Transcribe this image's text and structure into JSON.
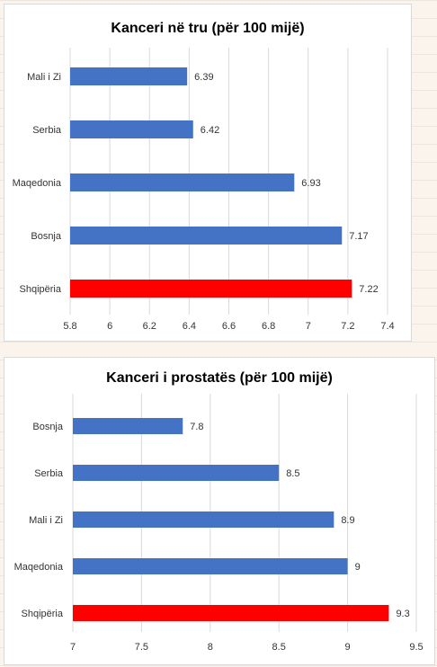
{
  "chart_data": [
    {
      "type": "bar",
      "orientation": "horizontal",
      "title": "Kanceri në tru (për 100 mijë)",
      "categories": [
        "Mali i Zi",
        "Serbia",
        "Maqedonia",
        "Bosnja",
        "Shqipëria"
      ],
      "values": [
        6.39,
        6.42,
        6.93,
        7.17,
        7.22
      ],
      "data_labels": [
        "6.39",
        "6.42",
        "6.93",
        "7.17",
        "7.22"
      ],
      "xlim": [
        5.8,
        7.4
      ],
      "xticks": [
        "5.8",
        "6",
        "6.2",
        "6.4",
        "6.6",
        "6.8",
        "7",
        "7.2",
        "7.4"
      ],
      "xtick_values": [
        5.8,
        6.0,
        6.2,
        6.4,
        6.6,
        6.8,
        7.0,
        7.2,
        7.4
      ],
      "grid": true,
      "colors": [
        "#4472c4",
        "#4472c4",
        "#4472c4",
        "#4472c4",
        "#ff0000"
      ]
    },
    {
      "type": "bar",
      "orientation": "horizontal",
      "title": "Kanceri i prostatës (për 100 mijë)",
      "categories": [
        "Bosnja",
        "Serbia",
        "Mali i Zi",
        "Maqedonia",
        "Shqipëria"
      ],
      "values": [
        7.8,
        8.5,
        8.9,
        9.0,
        9.3
      ],
      "data_labels": [
        "7.8",
        "8.5",
        "8.9",
        "9",
        "9.3"
      ],
      "xlim": [
        7,
        9.5
      ],
      "xticks": [
        "7",
        "7.5",
        "8",
        "8.5",
        "9",
        "9.5"
      ],
      "xtick_values": [
        7,
        7.5,
        8,
        8.5,
        9,
        9.5
      ],
      "grid": true,
      "colors": [
        "#4472c4",
        "#4472c4",
        "#4472c4",
        "#4472c4",
        "#ff0000"
      ]
    }
  ]
}
